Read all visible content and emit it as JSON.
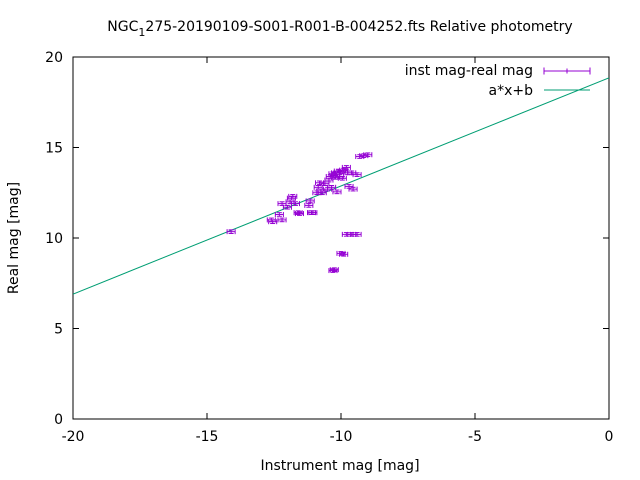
{
  "chart_data": {
    "type": "scatter",
    "title_prefix": "NGC",
    "title_subscript": "1",
    "title_suffix": "275-20190109-S001-R001-B-004252.fts Relative photometry",
    "xlabel": "Instrument mag [mag]",
    "ylabel": "Real mag [mag]",
    "xlim": [
      -20,
      0
    ],
    "ylim": [
      0,
      20
    ],
    "xticks": [
      -20,
      -15,
      -10,
      -5,
      0
    ],
    "yticks": [
      0,
      5,
      10,
      15,
      20
    ],
    "grid": false,
    "legend_position": "top-right",
    "colors": {
      "points": "#9400d3",
      "fit": "#009e73"
    },
    "series": [
      {
        "name": "inst mag-real mag",
        "kind": "errorbars",
        "xerr": 0.15,
        "yerr": 0.1,
        "points": [
          [
            -14.1,
            10.35
          ],
          [
            -12.6,
            11.0
          ],
          [
            -12.55,
            10.9
          ],
          [
            -12.3,
            11.3
          ],
          [
            -12.2,
            11.0
          ],
          [
            -12.2,
            11.9
          ],
          [
            -12.0,
            11.7
          ],
          [
            -11.9,
            12.0
          ],
          [
            -11.85,
            12.2
          ],
          [
            -11.8,
            12.3
          ],
          [
            -11.7,
            11.9
          ],
          [
            -11.6,
            11.4
          ],
          [
            -11.55,
            11.35
          ],
          [
            -11.2,
            11.8
          ],
          [
            -11.15,
            12.05
          ],
          [
            -11.1,
            11.4
          ],
          [
            -11.05,
            11.4
          ],
          [
            -10.9,
            12.5
          ],
          [
            -10.85,
            12.8
          ],
          [
            -10.8,
            13.05
          ],
          [
            -10.75,
            12.6
          ],
          [
            -10.7,
            12.5
          ],
          [
            -10.6,
            13.0
          ],
          [
            -10.5,
            12.7
          ],
          [
            -10.45,
            13.2
          ],
          [
            -10.4,
            13.4
          ],
          [
            -10.35,
            12.8
          ],
          [
            -10.3,
            13.55
          ],
          [
            -10.2,
            13.6
          ],
          [
            -10.2,
            13.35
          ],
          [
            -10.15,
            12.55
          ],
          [
            -10.1,
            13.7
          ],
          [
            -10.05,
            13.4
          ],
          [
            -10.0,
            13.65
          ],
          [
            -9.95,
            13.3
          ],
          [
            -9.9,
            13.75
          ],
          [
            -9.8,
            13.9
          ],
          [
            -9.75,
            13.6
          ],
          [
            -9.7,
            12.85
          ],
          [
            -9.6,
            13.6
          ],
          [
            -9.55,
            12.7
          ],
          [
            -9.4,
            13.5
          ],
          [
            -9.3,
            14.5
          ],
          [
            -9.15,
            14.55
          ],
          [
            -9.0,
            14.6
          ],
          [
            -10.3,
            8.2
          ],
          [
            -10.25,
            8.25
          ],
          [
            -10.0,
            9.15
          ],
          [
            -9.9,
            9.1
          ],
          [
            -9.8,
            10.2
          ],
          [
            -9.6,
            10.2
          ],
          [
            -9.4,
            10.2
          ]
        ]
      },
      {
        "name": "a*x+b",
        "kind": "line",
        "x": [
          -20,
          0
        ],
        "y": [
          6.9,
          18.85
        ]
      }
    ]
  }
}
